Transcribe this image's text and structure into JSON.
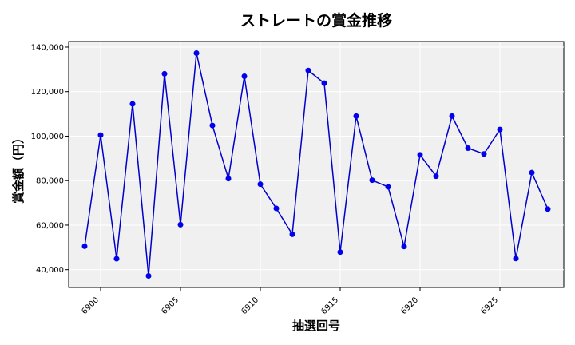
{
  "chart_data": {
    "type": "line",
    "title": "ストレートの賞金推移",
    "xlabel": "抽選回号",
    "ylabel": "賞金額（円）",
    "xlim": [
      6898,
      6929
    ],
    "ylim": [
      32000,
      142500
    ],
    "x_ticks": [
      6900,
      6905,
      6910,
      6915,
      6920,
      6925
    ],
    "y_ticks": [
      40000,
      60000,
      80000,
      100000,
      120000,
      140000
    ],
    "y_tick_labels": [
      "40,000",
      "60,000",
      "80,000",
      "100,000",
      "120,000",
      "140,000"
    ],
    "grid": true,
    "legend": "none",
    "colors": {
      "line": "#0000cc",
      "marker": "#0000ee",
      "plot_bg": "#f0f0f0"
    },
    "series": [
      {
        "x": [
          6899,
          6900,
          6901,
          6902,
          6903,
          6904,
          6905,
          6906,
          6907,
          6908,
          6909,
          6910,
          6911,
          6912,
          6913,
          6914,
          6915,
          6916,
          6917,
          6918,
          6919,
          6920,
          6921,
          6922,
          6923,
          6924,
          6925,
          6926,
          6927,
          6928
        ],
        "values": [
          50500,
          100500,
          44900,
          114500,
          37200,
          128000,
          60200,
          137300,
          104800,
          80900,
          126900,
          78400,
          67500,
          55900,
          129500,
          123800,
          47900,
          109000,
          80200,
          77200,
          50400,
          91600,
          82000,
          109000,
          94600,
          92000,
          103000,
          45000,
          83600,
          67200
        ]
      }
    ]
  }
}
